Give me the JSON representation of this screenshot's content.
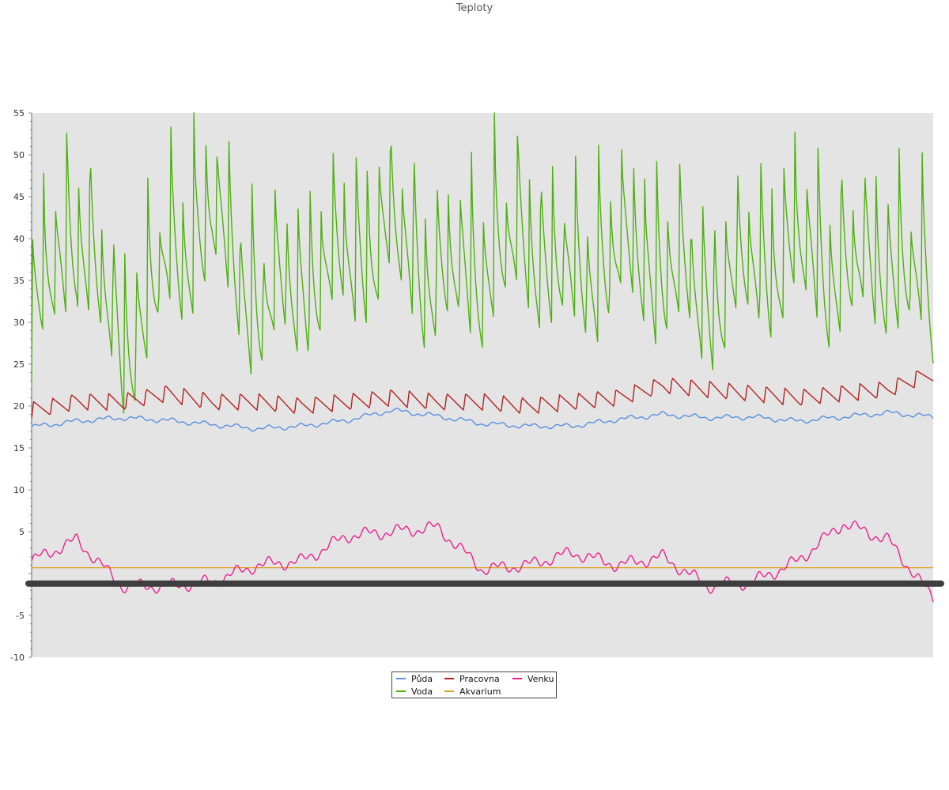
{
  "chart_data": {
    "type": "line",
    "title": "Teploty",
    "xlabel": "",
    "ylabel": "",
    "ylim": [
      -10,
      55
    ],
    "yticks": [
      -10,
      -5,
      5,
      10,
      15,
      20,
      25,
      30,
      35,
      40,
      45,
      50,
      55
    ],
    "grid": false,
    "legend_position": "bottom-center",
    "x": [
      0,
      0.05,
      0.1,
      0.15,
      0.2,
      0.25,
      0.3,
      0.35,
      0.4,
      0.45,
      0.5,
      0.55,
      0.6,
      0.65,
      0.7,
      0.75,
      0.8,
      0.85,
      0.9,
      0.95,
      1.0
    ],
    "series": [
      {
        "name": "Půda",
        "color": "#5b8fe0",
        "values": [
          17.5,
          18.2,
          18.6,
          18.3,
          17.8,
          17.3,
          17.6,
          18.3,
          19.5,
          18.8,
          17.9,
          17.6,
          17.6,
          18.4,
          19.0,
          18.6,
          18.7,
          18.2,
          18.7,
          19.2,
          18.7
        ]
      },
      {
        "name": "Pracovna",
        "color": "#b22222",
        "values": [
          19.5,
          20.5,
          20.5,
          21.5,
          20.5,
          20.5,
          20.0,
          20.5,
          21.0,
          20.5,
          20.5,
          20.0,
          20.5,
          21.0,
          22.5,
          22.0,
          21.5,
          21.0,
          21.5,
          22.0,
          24.0
        ]
      },
      {
        "name": "Voda",
        "color": "#4db010",
        "values": [
          33,
          45,
          30,
          40,
          46,
          35,
          38,
          41,
          44,
          38,
          40,
          43,
          38,
          42,
          40,
          36,
          40,
          42,
          39,
          41,
          36
        ]
      },
      {
        "name": "Akvarium",
        "color": "#e0a020",
        "values": [
          0.7,
          0.7,
          0.7,
          0.7,
          0.7,
          0.7,
          0.7,
          0.7,
          0.7,
          0.7,
          0.7,
          0.7,
          0.7,
          0.7,
          0.7,
          0.7,
          0.7,
          0.7,
          0.7,
          0.7,
          0.7
        ]
      },
      {
        "name": "Venku",
        "color": "#ee2090",
        "values": [
          1.5,
          4.0,
          -1.5,
          -1.5,
          -1.0,
          1.0,
          1.5,
          4.5,
          5.0,
          5.5,
          0.5,
          1.0,
          2.5,
          1.0,
          2.0,
          -1.5,
          -1.0,
          1.5,
          6.0,
          4.0,
          -3.0
        ]
      }
    ]
  }
}
